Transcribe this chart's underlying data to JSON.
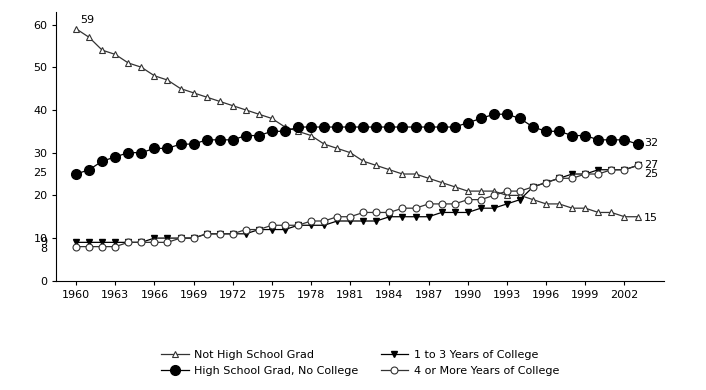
{
  "years": [
    1960,
    1961,
    1962,
    1963,
    1964,
    1965,
    1966,
    1967,
    1968,
    1969,
    1970,
    1971,
    1972,
    1973,
    1974,
    1975,
    1976,
    1977,
    1978,
    1979,
    1980,
    1981,
    1982,
    1983,
    1984,
    1985,
    1986,
    1987,
    1988,
    1989,
    1990,
    1991,
    1992,
    1993,
    1994,
    1995,
    1996,
    1997,
    1998,
    1999,
    2000,
    2001,
    2002,
    2003
  ],
  "not_hs_grad": [
    59,
    57,
    54,
    53,
    51,
    50,
    48,
    47,
    45,
    44,
    43,
    42,
    41,
    40,
    39,
    38,
    36,
    35,
    34,
    32,
    31,
    30,
    28,
    27,
    26,
    25,
    25,
    24,
    23,
    22,
    21,
    21,
    21,
    20,
    20,
    19,
    18,
    18,
    17,
    17,
    16,
    16,
    15,
    15
  ],
  "hs_grad_no_college": [
    25,
    26,
    28,
    29,
    30,
    30,
    31,
    31,
    32,
    32,
    33,
    33,
    33,
    34,
    34,
    35,
    35,
    36,
    36,
    36,
    36,
    36,
    36,
    36,
    36,
    36,
    36,
    36,
    36,
    36,
    37,
    38,
    39,
    39,
    38,
    36,
    35,
    35,
    34,
    34,
    33,
    33,
    33,
    32
  ],
  "one_to_three_college": [
    9,
    9,
    9,
    9,
    9,
    9,
    10,
    10,
    10,
    10,
    11,
    11,
    11,
    11,
    12,
    12,
    12,
    13,
    13,
    13,
    14,
    14,
    14,
    14,
    15,
    15,
    15,
    15,
    16,
    16,
    16,
    17,
    17,
    18,
    19,
    22,
    23,
    24,
    25,
    25,
    26,
    26,
    26,
    27
  ],
  "four_more_college": [
    8,
    8,
    8,
    8,
    9,
    9,
    9,
    9,
    10,
    10,
    11,
    11,
    11,
    12,
    12,
    13,
    13,
    13,
    14,
    14,
    15,
    15,
    16,
    16,
    16,
    17,
    17,
    18,
    18,
    18,
    19,
    19,
    20,
    21,
    21,
    22,
    23,
    24,
    24,
    25,
    25,
    26,
    26,
    27
  ],
  "xlim": [
    1958.5,
    2005
  ],
  "ylim": [
    0,
    63
  ],
  "xticks": [
    1960,
    1963,
    1966,
    1969,
    1972,
    1975,
    1978,
    1981,
    1984,
    1987,
    1990,
    1993,
    1996,
    1999,
    2002
  ],
  "yticks": [
    0,
    10,
    20,
    30,
    40,
    50,
    60
  ],
  "background_color": "#ffffff"
}
